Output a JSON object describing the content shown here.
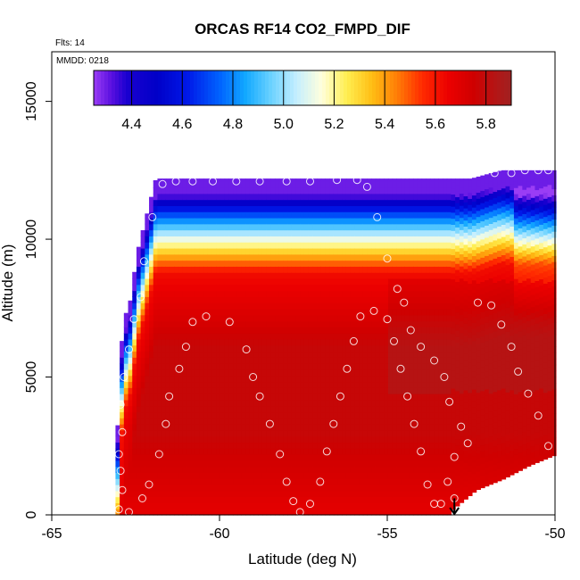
{
  "chart_data": {
    "type": "heatmap",
    "title": "ORCAS RF14 CO2_FMPD_DIF",
    "subtitle_flights": "Flts: 14",
    "subtitle_date": "MMDD: 0218",
    "xlabel": "Latitude (deg N)",
    "ylabel": "Altitude (m)",
    "xlim": [
      -65,
      -50
    ],
    "ylim": [
      0,
      16800
    ],
    "x_ticks": [
      -65,
      -60,
      -55,
      -50
    ],
    "x_tick_labels": [
      "-65",
      "-60",
      "-55",
      "-50"
    ],
    "y_ticks": [
      0,
      5000,
      10000,
      15000
    ],
    "y_tick_labels": [
      "0",
      "5000",
      "10000",
      "15000"
    ],
    "colorbar": {
      "range": [
        4.25,
        5.9
      ],
      "ticks": [
        4.4,
        4.6,
        4.8,
        5.0,
        5.2,
        5.4,
        5.6,
        5.8
      ],
      "tick_labels": [
        "4.4",
        "4.6",
        "4.8",
        "5.0",
        "5.2",
        "5.4",
        "5.6",
        "5.8"
      ],
      "stops": [
        {
          "v": 4.25,
          "c": "#9a3df5"
        },
        {
          "v": 4.32,
          "c": "#5a10e0"
        },
        {
          "v": 4.38,
          "c": "#1a00d0"
        },
        {
          "v": 4.5,
          "c": "#0000c8"
        },
        {
          "v": 4.62,
          "c": "#0018e8"
        },
        {
          "v": 4.75,
          "c": "#0064ff"
        },
        {
          "v": 4.85,
          "c": "#12a8ff"
        },
        {
          "v": 4.95,
          "c": "#6ad2ff"
        },
        {
          "v": 5.05,
          "c": "#c4eeff"
        },
        {
          "v": 5.15,
          "c": "#ffffdc"
        },
        {
          "v": 5.25,
          "c": "#ffee50"
        },
        {
          "v": 5.35,
          "c": "#ffbe14"
        },
        {
          "v": 5.45,
          "c": "#ff7c06"
        },
        {
          "v": 5.55,
          "c": "#ff2a00"
        },
        {
          "v": 5.65,
          "c": "#ec0000"
        },
        {
          "v": 5.75,
          "c": "#d00000"
        },
        {
          "v": 5.85,
          "c": "#b01818"
        },
        {
          "v": 5.9,
          "c": "#a02020"
        }
      ]
    },
    "field": {
      "description": "CO2 difference curtain: ~5.55-5.8 below 9 km, sharp gradient to ~4.3 near 12 km",
      "boundary_lat": [
        -63.1,
        -63.0,
        -62.85,
        -62.6,
        -62.5,
        -61.9,
        -60.0,
        -55.0,
        -52.5,
        -51.6,
        -50.9,
        -50.3,
        -50.0
      ],
      "boundary_top_alt": [
        0,
        5200,
        7100,
        8000,
        9300,
        12200,
        12200,
        12200,
        12200,
        12500,
        12500,
        12500,
        12500
      ],
      "surface_cutouts": [
        {
          "lat_from": -53.1,
          "lat_to": -50.0,
          "alt_step_lat": [
            -53.1,
            -52.4,
            -51.6,
            -50.8,
            -50.0
          ],
          "alt_step_top": [
            200,
            900,
            1300,
            1800,
            2200
          ]
        }
      ]
    },
    "flight_track": [
      [
        -63.0,
        200
      ],
      [
        -62.9,
        900
      ],
      [
        -62.95,
        1600
      ],
      [
        -63.0,
        2200
      ],
      [
        -62.9,
        3000
      ],
      [
        -62.95,
        4000
      ],
      [
        -62.85,
        5000
      ],
      [
        -62.7,
        6000
      ],
      [
        -62.55,
        7100
      ],
      [
        -62.35,
        7900
      ],
      [
        -62.25,
        9200
      ],
      [
        -62.0,
        10800
      ],
      [
        -61.7,
        12000
      ],
      [
        -61.3,
        12100
      ],
      [
        -60.8,
        12100
      ],
      [
        -60.2,
        12100
      ],
      [
        -59.5,
        12100
      ],
      [
        -58.8,
        12100
      ],
      [
        -58.0,
        12100
      ],
      [
        -57.3,
        12100
      ],
      [
        -56.5,
        12150
      ],
      [
        -55.9,
        12150
      ],
      [
        -55.6,
        11900
      ],
      [
        -55.3,
        10800
      ],
      [
        -55.0,
        9300
      ],
      [
        -54.7,
        8200
      ],
      [
        -54.5,
        7700
      ],
      [
        -54.3,
        6700
      ],
      [
        -54.0,
        6100
      ],
      [
        -53.6,
        5600
      ],
      [
        -53.3,
        5000
      ],
      [
        -53.15,
        4100
      ],
      [
        -52.8,
        3200
      ],
      [
        -52.6,
        2600
      ],
      [
        -53.0,
        2100
      ],
      [
        -53.2,
        1200
      ],
      [
        -53.0,
        600
      ],
      [
        -53.4,
        400
      ],
      [
        -62.7,
        100
      ],
      [
        -62.3,
        600
      ],
      [
        -62.1,
        1100
      ],
      [
        -61.8,
        2200
      ],
      [
        -61.6,
        3300
      ],
      [
        -61.5,
        4300
      ],
      [
        -61.2,
        5300
      ],
      [
        -61.0,
        6100
      ],
      [
        -60.8,
        7000
      ],
      [
        -60.4,
        7200
      ],
      [
        -59.7,
        7000
      ],
      [
        -59.2,
        6000
      ],
      [
        -59.0,
        5000
      ],
      [
        -58.8,
        4300
      ],
      [
        -58.5,
        3300
      ],
      [
        -58.2,
        2200
      ],
      [
        -58.0,
        1200
      ],
      [
        -57.8,
        500
      ],
      [
        -57.6,
        100
      ],
      [
        -57.3,
        400
      ],
      [
        -57.0,
        1200
      ],
      [
        -56.8,
        2300
      ],
      [
        -56.6,
        3300
      ],
      [
        -56.4,
        4300
      ],
      [
        -56.2,
        5300
      ],
      [
        -56.0,
        6300
      ],
      [
        -55.8,
        7200
      ],
      [
        -55.4,
        7400
      ],
      [
        -55.0,
        7100
      ],
      [
        -54.8,
        6300
      ],
      [
        -54.6,
        5300
      ],
      [
        -54.4,
        4300
      ],
      [
        -54.2,
        3300
      ],
      [
        -54.0,
        2300
      ],
      [
        -53.8,
        1100
      ],
      [
        -53.6,
        400
      ],
      [
        -52.3,
        7700
      ],
      [
        -51.9,
        7600
      ],
      [
        -51.6,
        6900
      ],
      [
        -51.3,
        6100
      ],
      [
        -51.1,
        5200
      ],
      [
        -50.8,
        4400
      ],
      [
        -50.5,
        3600
      ],
      [
        -50.2,
        2500
      ],
      [
        -51.8,
        12400
      ],
      [
        -51.3,
        12400
      ],
      [
        -50.9,
        12500
      ],
      [
        -50.5,
        12500
      ],
      [
        -50.2,
        12500
      ]
    ],
    "annotation": {
      "type": "arrow-down",
      "lat": -53.0,
      "alt_from": 600,
      "alt_to": 0
    }
  }
}
